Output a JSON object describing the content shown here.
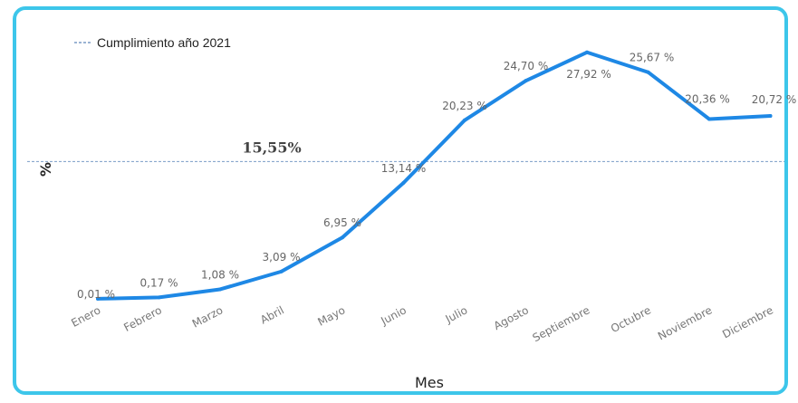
{
  "chart_data": {
    "type": "line",
    "legend": {
      "label": "Cumplimiento año 2021",
      "placement": "top-left"
    },
    "xlabel": "Mes",
    "ylabel": "%",
    "categories": [
      "Enero",
      "Febrero",
      "Marzo",
      "Abril",
      "Mayo",
      "Junio",
      "Julio",
      "Agosto",
      "Septiembre",
      "Octubre",
      "Noviembre",
      "Diciembre"
    ],
    "series": [
      {
        "values": [
          0.01,
          0.17,
          1.08,
          3.09,
          6.95,
          13.14,
          20.23,
          24.7,
          27.92,
          25.67,
          20.36,
          20.72
        ],
        "data_labels": [
          "0,01 %",
          "0,17 %",
          "1,08 %",
          "3,09 %",
          "6,95 %",
          "13,14 %",
          "20,23 %",
          "24,70 %",
          "27,92 %",
          "25,67 %",
          "20,36 %",
          "20,72 %"
        ]
      }
    ],
    "reference_line": {
      "value": 15.55,
      "label": "15,55%"
    },
    "ylim": [
      0,
      28
    ],
    "grid": false,
    "colors": {
      "line": "#1e88e5",
      "reference": "#7a9cc6",
      "frame": "#3dc6ea"
    }
  }
}
